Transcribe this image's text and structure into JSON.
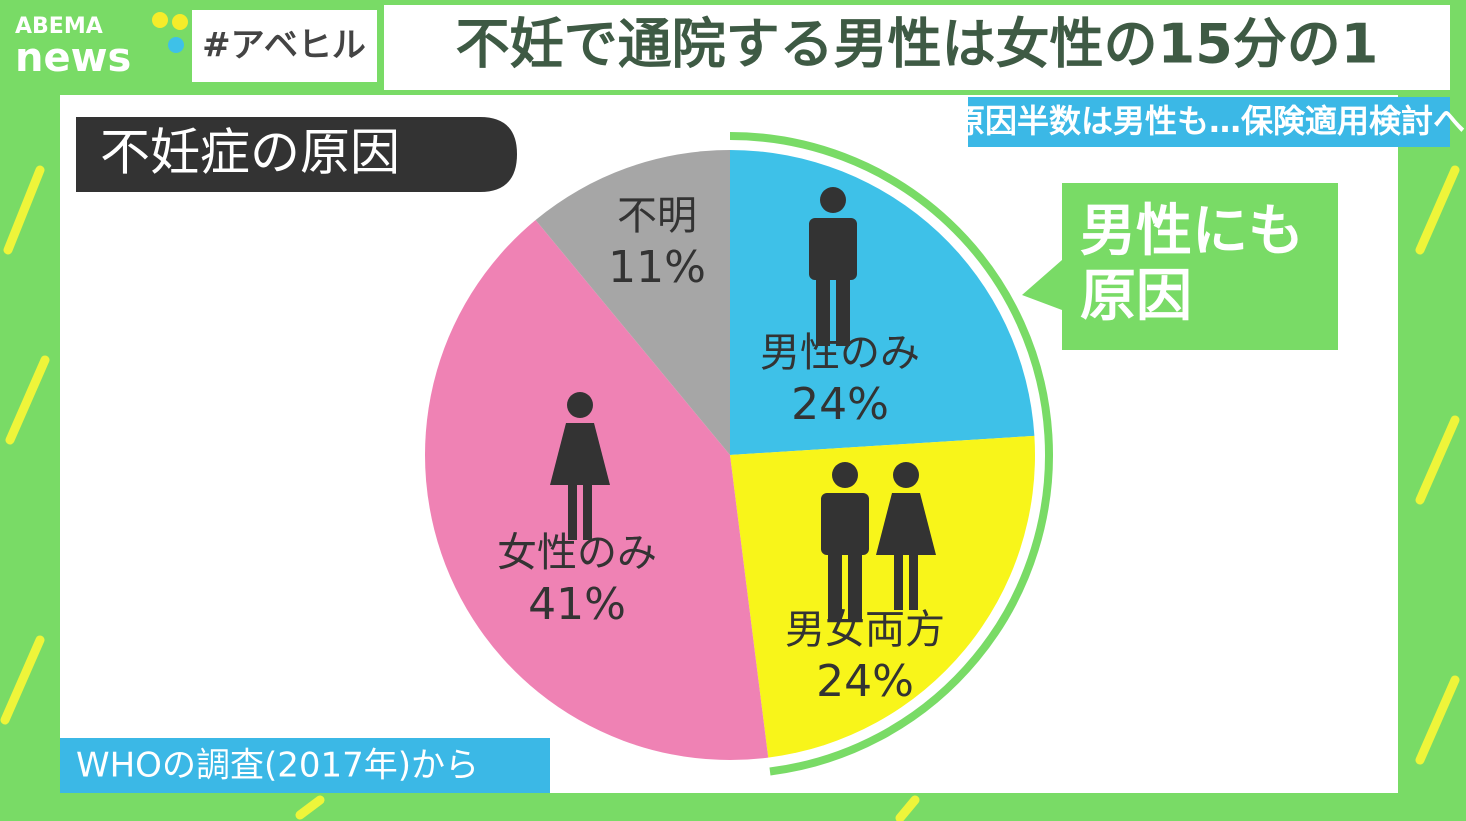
{
  "header": {
    "logo_top": "ABEMA",
    "logo_bottom": "news",
    "hashtag": "#アベヒル",
    "headline": "不妊で通院する男性は女性の15分の1",
    "subheadline": "原因半数は男性も…保険適用検討へ"
  },
  "callout": [
    "男性にも",
    "原因"
  ],
  "source": "WHOの調査(2017年)から",
  "chart_data": {
    "type": "pie",
    "title": "不妊症の原因",
    "categories": [
      "男性のみ",
      "男女両方",
      "女性のみ",
      "不明"
    ],
    "values": [
      24,
      24,
      41,
      11
    ],
    "value_labels": [
      "24%",
      "24%",
      "41%",
      "11%"
    ],
    "colors": [
      "#3ec1e8",
      "#f8f51a",
      "#ef82b4",
      "#a6a6a6"
    ]
  }
}
